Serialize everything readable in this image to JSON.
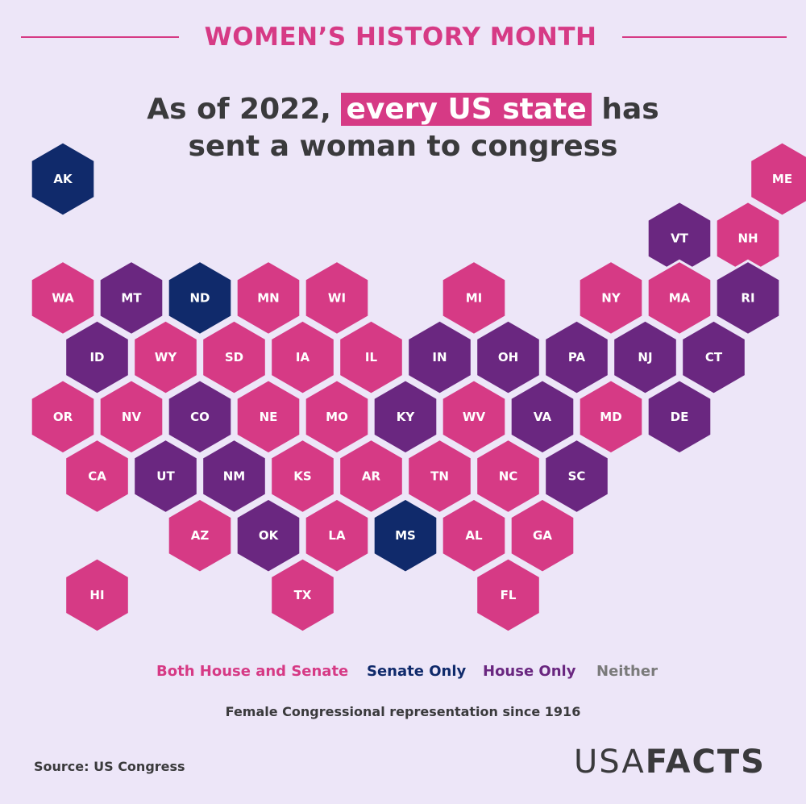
{
  "header": {
    "banner": "WOMEN’S HISTORY MONTH",
    "headline_prefix": "As of 2022,",
    "headline_highlight": "every US state",
    "headline_suffix": "has",
    "headline_line2": "sent a woman to congress"
  },
  "colors": {
    "both": "#d63a85",
    "senate": "#102a6b",
    "house": "#6a2780",
    "neither": "#7a7a7a",
    "background": "#ede6f8"
  },
  "legend": [
    {
      "label": "Both House and Senate",
      "category": "both"
    },
    {
      "label": "Senate Only",
      "category": "senate"
    },
    {
      "label": "House Only",
      "category": "house"
    },
    {
      "label": "Neither",
      "category": "neither"
    }
  ],
  "subtitle": "Female Congressional representation since 1916",
  "source": "Source: US Congress",
  "brand": {
    "part1": "USA",
    "part2": "FACTS"
  },
  "map": {
    "type": "hex-tile-map",
    "states": [
      {
        "abbr": "AK",
        "row": 0,
        "col": 0,
        "category": "senate"
      },
      {
        "abbr": "ME",
        "row": 0,
        "col": 21,
        "category": "both"
      },
      {
        "abbr": "VT",
        "row": 1,
        "col": 18,
        "category": "house"
      },
      {
        "abbr": "NH",
        "row": 1,
        "col": 20,
        "category": "both"
      },
      {
        "abbr": "WA",
        "row": 2,
        "col": 0,
        "category": "both"
      },
      {
        "abbr": "MT",
        "row": 2,
        "col": 2,
        "category": "house"
      },
      {
        "abbr": "ND",
        "row": 2,
        "col": 4,
        "category": "senate"
      },
      {
        "abbr": "MN",
        "row": 2,
        "col": 6,
        "category": "both"
      },
      {
        "abbr": "WI",
        "row": 2,
        "col": 8,
        "category": "both"
      },
      {
        "abbr": "MI",
        "row": 2,
        "col": 12,
        "category": "both"
      },
      {
        "abbr": "NY",
        "row": 2,
        "col": 16,
        "category": "both"
      },
      {
        "abbr": "MA",
        "row": 2,
        "col": 18,
        "category": "both"
      },
      {
        "abbr": "RI",
        "row": 2,
        "col": 20,
        "category": "house"
      },
      {
        "abbr": "ID",
        "row": 3,
        "col": 1,
        "category": "house"
      },
      {
        "abbr": "WY",
        "row": 3,
        "col": 3,
        "category": "both"
      },
      {
        "abbr": "SD",
        "row": 3,
        "col": 5,
        "category": "both"
      },
      {
        "abbr": "IA",
        "row": 3,
        "col": 7,
        "category": "both"
      },
      {
        "abbr": "IL",
        "row": 3,
        "col": 9,
        "category": "both"
      },
      {
        "abbr": "IN",
        "row": 3,
        "col": 11,
        "category": "house"
      },
      {
        "abbr": "OH",
        "row": 3,
        "col": 13,
        "category": "house"
      },
      {
        "abbr": "PA",
        "row": 3,
        "col": 15,
        "category": "house"
      },
      {
        "abbr": "NJ",
        "row": 3,
        "col": 17,
        "category": "house"
      },
      {
        "abbr": "CT",
        "row": 3,
        "col": 19,
        "category": "house"
      },
      {
        "abbr": "OR",
        "row": 4,
        "col": 0,
        "category": "both"
      },
      {
        "abbr": "NV",
        "row": 4,
        "col": 2,
        "category": "both"
      },
      {
        "abbr": "CO",
        "row": 4,
        "col": 4,
        "category": "house"
      },
      {
        "abbr": "NE",
        "row": 4,
        "col": 6,
        "category": "both"
      },
      {
        "abbr": "MO",
        "row": 4,
        "col": 8,
        "category": "both"
      },
      {
        "abbr": "KY",
        "row": 4,
        "col": 10,
        "category": "house"
      },
      {
        "abbr": "WV",
        "row": 4,
        "col": 12,
        "category": "both"
      },
      {
        "abbr": "VA",
        "row": 4,
        "col": 14,
        "category": "house"
      },
      {
        "abbr": "MD",
        "row": 4,
        "col": 16,
        "category": "both"
      },
      {
        "abbr": "DE",
        "row": 4,
        "col": 18,
        "category": "house"
      },
      {
        "abbr": "CA",
        "row": 5,
        "col": 1,
        "category": "both"
      },
      {
        "abbr": "UT",
        "row": 5,
        "col": 3,
        "category": "house"
      },
      {
        "abbr": "NM",
        "row": 5,
        "col": 5,
        "category": "house"
      },
      {
        "abbr": "KS",
        "row": 5,
        "col": 7,
        "category": "both"
      },
      {
        "abbr": "AR",
        "row": 5,
        "col": 9,
        "category": "both"
      },
      {
        "abbr": "TN",
        "row": 5,
        "col": 11,
        "category": "both"
      },
      {
        "abbr": "NC",
        "row": 5,
        "col": 13,
        "category": "both"
      },
      {
        "abbr": "SC",
        "row": 5,
        "col": 15,
        "category": "house"
      },
      {
        "abbr": "AZ",
        "row": 6,
        "col": 4,
        "category": "both"
      },
      {
        "abbr": "OK",
        "row": 6,
        "col": 6,
        "category": "house"
      },
      {
        "abbr": "LA",
        "row": 6,
        "col": 8,
        "category": "both"
      },
      {
        "abbr": "MS",
        "row": 6,
        "col": 10,
        "category": "senate"
      },
      {
        "abbr": "AL",
        "row": 6,
        "col": 12,
        "category": "both"
      },
      {
        "abbr": "GA",
        "row": 6,
        "col": 14,
        "category": "both"
      },
      {
        "abbr": "HI",
        "row": 7,
        "col": 1,
        "category": "both"
      },
      {
        "abbr": "TX",
        "row": 7,
        "col": 7,
        "category": "both"
      },
      {
        "abbr": "FL",
        "row": 7,
        "col": 13,
        "category": "both"
      }
    ]
  }
}
